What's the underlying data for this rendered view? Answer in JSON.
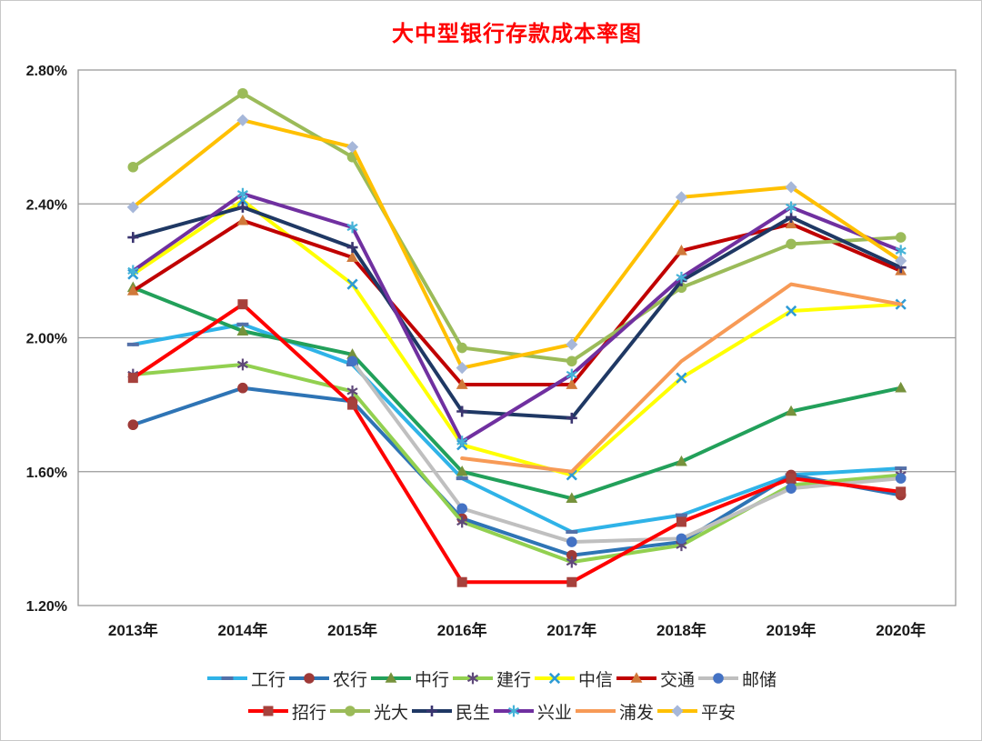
{
  "chart_data": {
    "type": "line",
    "title": "大中型银行存款成本率图",
    "title_color": "#ff0000",
    "categories": [
      "2013年",
      "2014年",
      "2015年",
      "2016年",
      "2017年",
      "2018年",
      "2019年",
      "2020年"
    ],
    "y_axis": {
      "min": 1.2,
      "max": 2.8,
      "step": 0.4,
      "tick_labels": [
        "1.20%",
        "1.60%",
        "2.00%",
        "2.40%",
        "2.80%"
      ],
      "unit": "percent"
    },
    "grid": true,
    "gridline_color": "#9a9a9a",
    "plot_border_color": "#9a9a9a",
    "legend_position": "bottom",
    "legend_rows": [
      7,
      6
    ],
    "series": [
      {
        "name": "工行",
        "color": "#2fb3e8",
        "marker": "dash",
        "marker_color": "#5470a8",
        "values": [
          1.98,
          2.04,
          1.92,
          1.58,
          1.42,
          1.47,
          1.59,
          1.61
        ]
      },
      {
        "name": "农行",
        "color": "#2e74b5",
        "marker": "circle",
        "marker_color": "#9e3a38",
        "values": [
          1.74,
          1.85,
          1.81,
          1.46,
          1.35,
          1.39,
          1.59,
          1.53
        ]
      },
      {
        "name": "中行",
        "color": "#22a05a",
        "marker": "triangle",
        "marker_color": "#76923c",
        "values": [
          2.15,
          2.02,
          1.95,
          1.6,
          1.52,
          1.63,
          1.78,
          1.85
        ]
      },
      {
        "name": "建行",
        "color": "#92d050",
        "marker": "star",
        "marker_color": "#5f497a",
        "values": [
          1.89,
          1.92,
          1.84,
          1.45,
          1.33,
          1.38,
          1.56,
          1.59
        ]
      },
      {
        "name": "中信",
        "color": "#ffff00",
        "marker": "x",
        "marker_color": "#2e9bd5",
        "values": [
          2.19,
          2.41,
          2.16,
          1.68,
          1.59,
          1.88,
          2.08,
          2.1
        ]
      },
      {
        "name": "交通",
        "color": "#c00000",
        "marker": "triangle",
        "marker_color": "#d0793a",
        "values": [
          2.14,
          2.35,
          2.24,
          1.86,
          1.86,
          2.26,
          2.34,
          2.2
        ]
      },
      {
        "name": "邮储",
        "color": "#bfbfbf",
        "marker": "circle",
        "marker_color": "#4472c4",
        "values": [
          null,
          null,
          1.93,
          1.49,
          1.39,
          1.4,
          1.55,
          1.58
        ]
      },
      {
        "name": "招行",
        "color": "#fe0000",
        "marker": "square",
        "marker_color": "#a6413c",
        "values": [
          1.88,
          2.1,
          1.8,
          1.27,
          1.27,
          1.45,
          1.58,
          1.54
        ]
      },
      {
        "name": "光大",
        "color": "#9bbb59",
        "marker": "circle",
        "marker_color": "#9bbb59",
        "values": [
          2.51,
          2.73,
          2.54,
          1.97,
          1.93,
          2.15,
          2.28,
          2.3
        ]
      },
      {
        "name": "民生",
        "color": "#1f3864",
        "marker": "plus",
        "marker_color": "#3b3570",
        "values": [
          2.3,
          2.39,
          2.27,
          1.78,
          1.76,
          2.17,
          2.36,
          2.21
        ]
      },
      {
        "name": "兴业",
        "color": "#7030a0",
        "marker": "star",
        "marker_color": "#45b3d8",
        "values": [
          2.2,
          2.43,
          2.33,
          1.69,
          1.89,
          2.18,
          2.39,
          2.26
        ]
      },
      {
        "name": "浦发",
        "color": "#f79a56",
        "marker": "none",
        "marker_color": "#f79a56",
        "values": [
          null,
          null,
          null,
          1.64,
          1.6,
          1.93,
          2.16,
          2.1
        ]
      },
      {
        "name": "平安",
        "color": "#ffc000",
        "marker": "diamond",
        "marker_color": "#a6b7d9",
        "values": [
          2.39,
          2.65,
          2.57,
          1.91,
          1.98,
          2.42,
          2.45,
          2.23
        ]
      }
    ]
  }
}
